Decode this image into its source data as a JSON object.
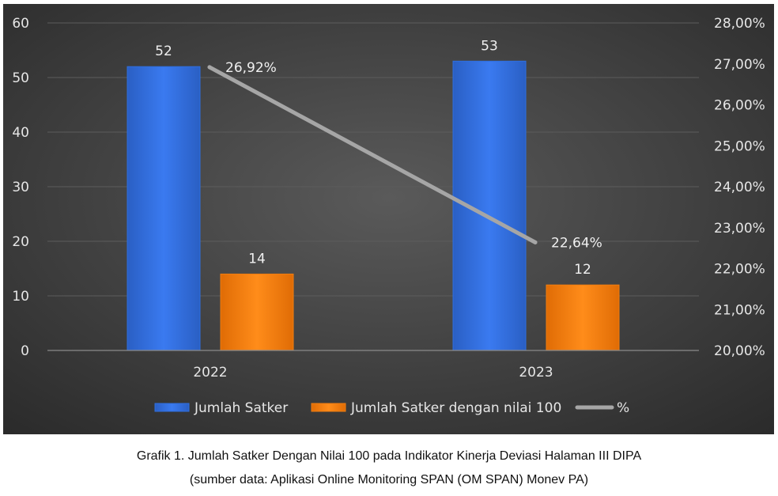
{
  "chart_data": {
    "type": "bar",
    "categories": [
      "2022",
      "2023"
    ],
    "series": [
      {
        "name": "Jumlah Satker",
        "values": [
          52,
          53
        ],
        "color": "#2f6fe0",
        "axis": "left"
      },
      {
        "name": "Jumlah Satker dengan nilai 100",
        "values": [
          14,
          12
        ],
        "color": "#f07d10",
        "axis": "left"
      },
      {
        "name": "%",
        "type": "line",
        "values": [
          26.92,
          22.64
        ],
        "value_labels": [
          "26,92%",
          "22,64%"
        ],
        "color": "#a6a6a6",
        "axis": "right"
      }
    ],
    "ylim_left": [
      0,
      60
    ],
    "yticks_left": [
      "0",
      "10",
      "20",
      "30",
      "40",
      "50",
      "60"
    ],
    "ylim_right": [
      20,
      28
    ],
    "yticks_right": [
      "20,00%",
      "21,00%",
      "22,00%",
      "23,00%",
      "24,00%",
      "25,00%",
      "26,00%",
      "27,00%",
      "28,00%"
    ],
    "grid": true,
    "legend_position": "bottom",
    "background": "#3a3a3a"
  },
  "caption": {
    "line1": "Grafik 1. Jumlah Satker Dengan Nilai 100 pada Indikator Kinerja Deviasi Halaman III DIPA",
    "line2": "(sumber data: Aplikasi Online Monitoring SPAN (OM SPAN) Monev PA)"
  }
}
